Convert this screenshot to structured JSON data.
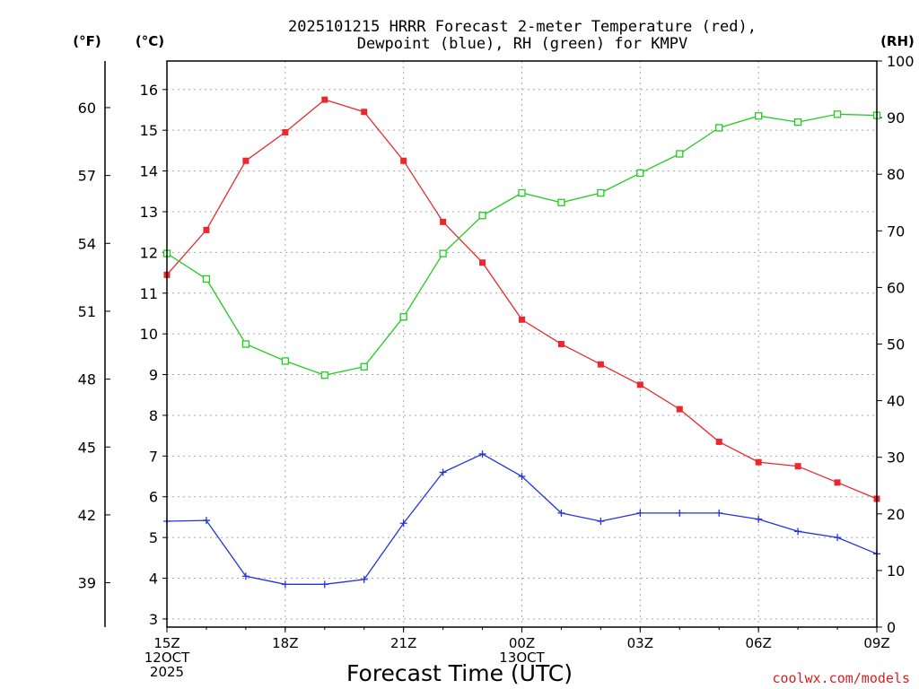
{
  "chart_data": {
    "type": "line",
    "title": "2025101215 HRRR Forecast 2-meter Temperature (red),",
    "subtitle": "Dewpoint (blue), RH (green) for KMPV",
    "xlabel": "Forecast Time (UTC)",
    "credit": "coolwx.com/models",
    "units": {
      "fahrenheit": "(°F)",
      "celsius": "(°C)",
      "rh": "(RH)"
    },
    "x_hours": [
      0,
      1,
      2,
      3,
      4,
      5,
      6,
      7,
      8,
      9,
      10,
      11,
      12,
      13,
      14,
      15,
      16,
      17,
      18
    ],
    "x_range": [
      0,
      18
    ],
    "x_ticks": [
      {
        "hour": 0,
        "lines": [
          "15Z",
          "12OCT",
          "2025"
        ]
      },
      {
        "hour": 3,
        "lines": [
          "18Z"
        ]
      },
      {
        "hour": 6,
        "lines": [
          "21Z"
        ]
      },
      {
        "hour": 9,
        "lines": [
          "00Z",
          "13OCT"
        ]
      },
      {
        "hour": 12,
        "lines": [
          "03Z"
        ]
      },
      {
        "hour": 15,
        "lines": [
          "06Z"
        ]
      },
      {
        "hour": 18,
        "lines": [
          "09Z"
        ]
      }
    ],
    "celsius_axis": {
      "range": [
        2.8,
        16.7
      ],
      "ticks": [
        3,
        4,
        5,
        6,
        7,
        8,
        9,
        10,
        11,
        12,
        13,
        14,
        15,
        16
      ]
    },
    "fahrenheit_ticks": [
      39,
      42,
      45,
      48,
      51,
      54,
      57,
      60
    ],
    "rh_axis": {
      "range": [
        0,
        100
      ],
      "ticks": [
        0,
        10,
        20,
        30,
        40,
        50,
        60,
        70,
        80,
        90,
        100
      ]
    },
    "series": [
      {
        "name": "Temperature",
        "axis": "celsius",
        "color": "#e8292e",
        "marker": "filled-square",
        "values": [
          11.45,
          12.55,
          14.25,
          14.95,
          15.75,
          15.45,
          14.25,
          12.75,
          11.75,
          10.35,
          9.75,
          9.25,
          8.75,
          8.15,
          7.35,
          6.85,
          6.75,
          6.35,
          5.95
        ]
      },
      {
        "name": "Dewpoint",
        "axis": "celsius",
        "color": "#2233e0",
        "marker": "plus",
        "values": [
          5.4,
          5.42,
          4.05,
          3.85,
          3.85,
          3.97,
          5.35,
          6.6,
          7.05,
          6.5,
          5.6,
          5.4,
          5.6,
          5.6,
          5.6,
          5.45,
          5.15,
          5.0,
          4.6
        ]
      },
      {
        "name": "RH",
        "axis": "rh",
        "color": "#22cc22",
        "marker": "open-square",
        "values": [
          66,
          61.5,
          50,
          47,
          44.5,
          46,
          54.8,
          66,
          72.7,
          76.7,
          75,
          76.7,
          80.2,
          83.6,
          88.2,
          90.3,
          89.2,
          90.6,
          90.4
        ]
      }
    ]
  }
}
